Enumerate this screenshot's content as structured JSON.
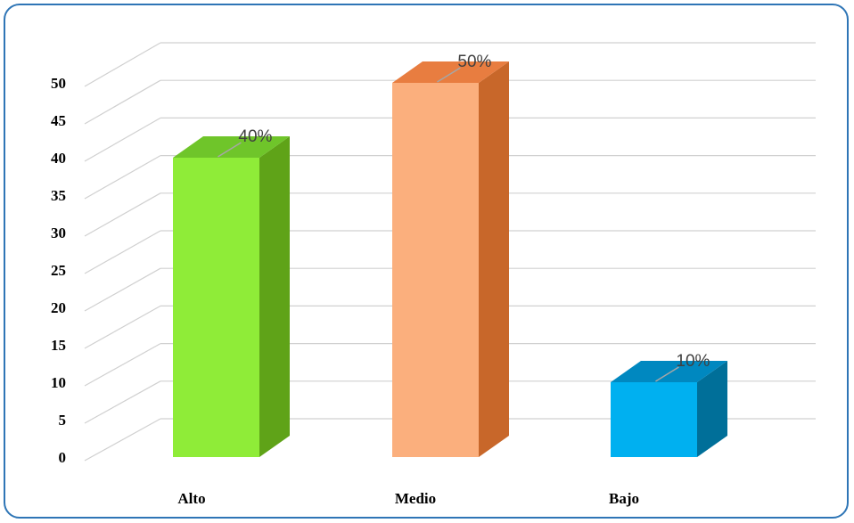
{
  "chart_data": {
    "type": "bar",
    "style": "3d-column",
    "categories": [
      "Alto",
      "Medio",
      "Bajo"
    ],
    "values": [
      40,
      50,
      10
    ],
    "data_labels": [
      "40%",
      "50%",
      "10%"
    ],
    "colors": {
      "front": [
        "#8fec38",
        "#fbaf7d",
        "#00b0f0"
      ],
      "side": [
        "#5fa318",
        "#c8672a",
        "#006f99"
      ],
      "top": [
        "#6fc52a",
        "#e87d40",
        "#0088c0"
      ]
    },
    "ylim": [
      0,
      50
    ],
    "yticks": [
      "0",
      "5",
      "10",
      "15",
      "20",
      "25",
      "30",
      "35",
      "40",
      "45",
      "50"
    ],
    "grid": true,
    "legend": "none",
    "title": "",
    "xlabel": "",
    "ylabel": ""
  }
}
